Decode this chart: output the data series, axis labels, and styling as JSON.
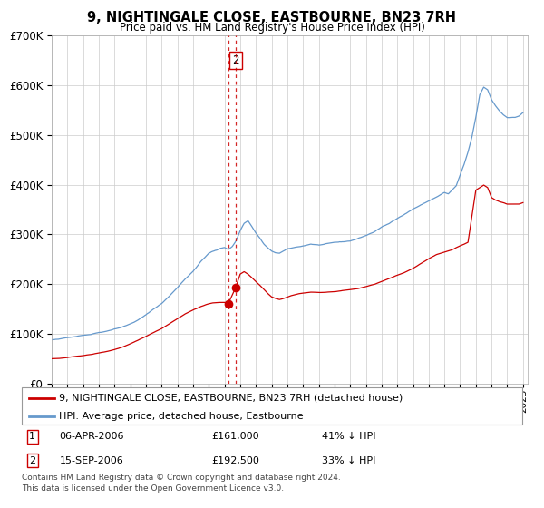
{
  "title": "9, NIGHTINGALE CLOSE, EASTBOURNE, BN23 7RH",
  "subtitle": "Price paid vs. HM Land Registry's House Price Index (HPI)",
  "legend_red": "9, NIGHTINGALE CLOSE, EASTBOURNE, BN23 7RH (detached house)",
  "legend_blue": "HPI: Average price, detached house, Eastbourne",
  "transaction1_date": "06-APR-2006",
  "transaction1_price": "£161,000",
  "transaction1_hpi": "41% ↓ HPI",
  "transaction2_date": "15-SEP-2006",
  "transaction2_price": "£192,500",
  "transaction2_hpi": "33% ↓ HPI",
  "footer": "Contains HM Land Registry data © Crown copyright and database right 2024.\nThis data is licensed under the Open Government Licence v3.0.",
  "red_color": "#cc0000",
  "blue_color": "#6699cc",
  "grid_color": "#cccccc",
  "t1_x": 2006.25,
  "t2_x": 2006.71,
  "t1_y": 161000,
  "t2_y": 192500,
  "ylim": [
    0,
    700000
  ],
  "xlim_start": 1995.0,
  "xlim_end": 2025.3,
  "blue_anchors_x": [
    1995.0,
    1995.5,
    1996.0,
    1996.5,
    1997.0,
    1997.5,
    1998.0,
    1998.5,
    1999.0,
    1999.5,
    2000.0,
    2000.5,
    2001.0,
    2001.5,
    2002.0,
    2002.5,
    2003.0,
    2003.5,
    2004.0,
    2004.5,
    2005.0,
    2005.25,
    2005.5,
    2005.75,
    2006.0,
    2006.25,
    2006.5,
    2006.75,
    2007.0,
    2007.25,
    2007.5,
    2007.75,
    2008.0,
    2008.25,
    2008.5,
    2008.75,
    2009.0,
    2009.25,
    2009.5,
    2009.75,
    2010.0,
    2010.5,
    2011.0,
    2011.5,
    2012.0,
    2012.5,
    2013.0,
    2013.5,
    2014.0,
    2014.5,
    2015.0,
    2015.5,
    2016.0,
    2016.5,
    2017.0,
    2017.5,
    2018.0,
    2018.5,
    2019.0,
    2019.5,
    2020.0,
    2020.25,
    2020.5,
    2020.75,
    2021.0,
    2021.25,
    2021.5,
    2021.75,
    2022.0,
    2022.25,
    2022.5,
    2022.75,
    2023.0,
    2023.25,
    2023.5,
    2023.75,
    2024.0,
    2024.25,
    2024.5,
    2024.75,
    2025.0
  ],
  "blue_anchors_y": [
    88000,
    89000,
    92000,
    95000,
    98000,
    100000,
    104000,
    107000,
    112000,
    116000,
    122000,
    130000,
    140000,
    152000,
    163000,
    178000,
    195000,
    213000,
    228000,
    248000,
    264000,
    268000,
    270000,
    274000,
    276000,
    272000,
    278000,
    290000,
    310000,
    325000,
    330000,
    318000,
    305000,
    295000,
    283000,
    275000,
    268000,
    265000,
    264000,
    268000,
    272000,
    275000,
    278000,
    282000,
    280000,
    282000,
    284000,
    285000,
    287000,
    292000,
    298000,
    305000,
    315000,
    322000,
    333000,
    342000,
    352000,
    360000,
    368000,
    376000,
    385000,
    382000,
    390000,
    398000,
    420000,
    440000,
    465000,
    495000,
    535000,
    580000,
    595000,
    590000,
    570000,
    558000,
    548000,
    540000,
    535000,
    535000,
    535000,
    538000,
    545000
  ],
  "red_anchors_x": [
    1995.0,
    1995.5,
    1996.0,
    1996.5,
    1997.0,
    1997.5,
    1998.0,
    1998.5,
    1999.0,
    1999.5,
    2000.0,
    2000.5,
    2001.0,
    2001.5,
    2002.0,
    2002.5,
    2003.0,
    2003.5,
    2004.0,
    2004.5,
    2005.0,
    2005.25,
    2005.5,
    2005.75,
    2006.0,
    2006.25,
    2006.71,
    2007.0,
    2007.25,
    2007.5,
    2007.75,
    2008.0,
    2008.25,
    2008.5,
    2008.75,
    2009.0,
    2009.25,
    2009.5,
    2009.75,
    2010.0,
    2010.25,
    2010.5,
    2010.75,
    2011.0,
    2011.5,
    2012.0,
    2012.5,
    2013.0,
    2013.5,
    2014.0,
    2014.5,
    2015.0,
    2015.5,
    2016.0,
    2016.5,
    2017.0,
    2017.5,
    2018.0,
    2018.5,
    2019.0,
    2019.5,
    2020.0,
    2020.5,
    2021.0,
    2021.5,
    2022.0,
    2022.25,
    2022.5,
    2022.75,
    2023.0,
    2023.25,
    2023.5,
    2023.75,
    2024.0,
    2024.25,
    2024.5,
    2024.75,
    2025.0
  ],
  "red_anchors_y": [
    50000,
    50500,
    52000,
    54000,
    56000,
    58000,
    61000,
    64000,
    68000,
    73000,
    79000,
    86000,
    94000,
    102000,
    110000,
    120000,
    130000,
    140000,
    148000,
    155000,
    160000,
    162000,
    163000,
    163000,
    163000,
    161000,
    192500,
    220000,
    225000,
    220000,
    213000,
    205000,
    198000,
    190000,
    182000,
    175000,
    172000,
    170000,
    172000,
    175000,
    178000,
    180000,
    182000,
    183000,
    185000,
    184000,
    185000,
    186000,
    188000,
    190000,
    192000,
    196000,
    200000,
    206000,
    212000,
    218000,
    224000,
    232000,
    242000,
    252000,
    260000,
    265000,
    270000,
    278000,
    285000,
    390000,
    395000,
    400000,
    395000,
    375000,
    370000,
    367000,
    365000,
    362000,
    362000,
    362000,
    362000,
    365000
  ]
}
